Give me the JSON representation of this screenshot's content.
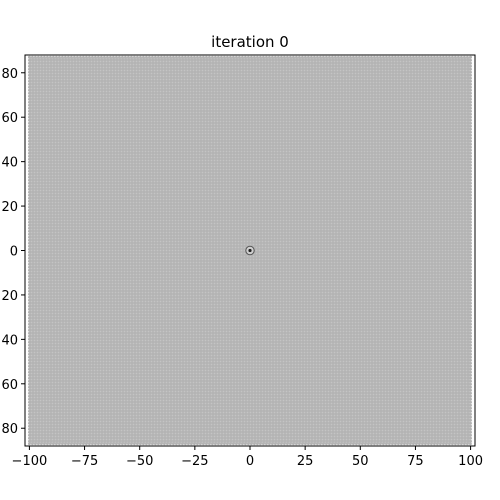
{
  "chart_data": {
    "type": "scatter",
    "title": "iteration 0",
    "xlabel": "",
    "ylabel": "",
    "xlim": [
      -102,
      102
    ],
    "ylim": [
      -88,
      88
    ],
    "x_ticks": [
      -100,
      -75,
      -50,
      -25,
      0,
      25,
      50,
      75,
      100
    ],
    "x_tick_labels": [
      "−100",
      "−75",
      "−50",
      "−25",
      "0",
      "25",
      "50",
      "75",
      "100"
    ],
    "y_ticks": [
      -80,
      -60,
      -40,
      -20,
      0,
      20,
      40,
      60,
      80
    ],
    "y_tick_labels": [
      "80",
      "60",
      "40",
      "20",
      "0",
      "20",
      "40",
      "60",
      "80"
    ],
    "grid": false,
    "legend": "none",
    "series": [
      {
        "kind": "grid-dots",
        "x_range": [
          -100,
          100
        ],
        "y_range": [
          -87,
          87
        ],
        "color": "#b3b3b3"
      },
      {
        "kind": "marker",
        "x": [
          0
        ],
        "y": [
          0
        ],
        "color": "#555555"
      }
    ]
  }
}
